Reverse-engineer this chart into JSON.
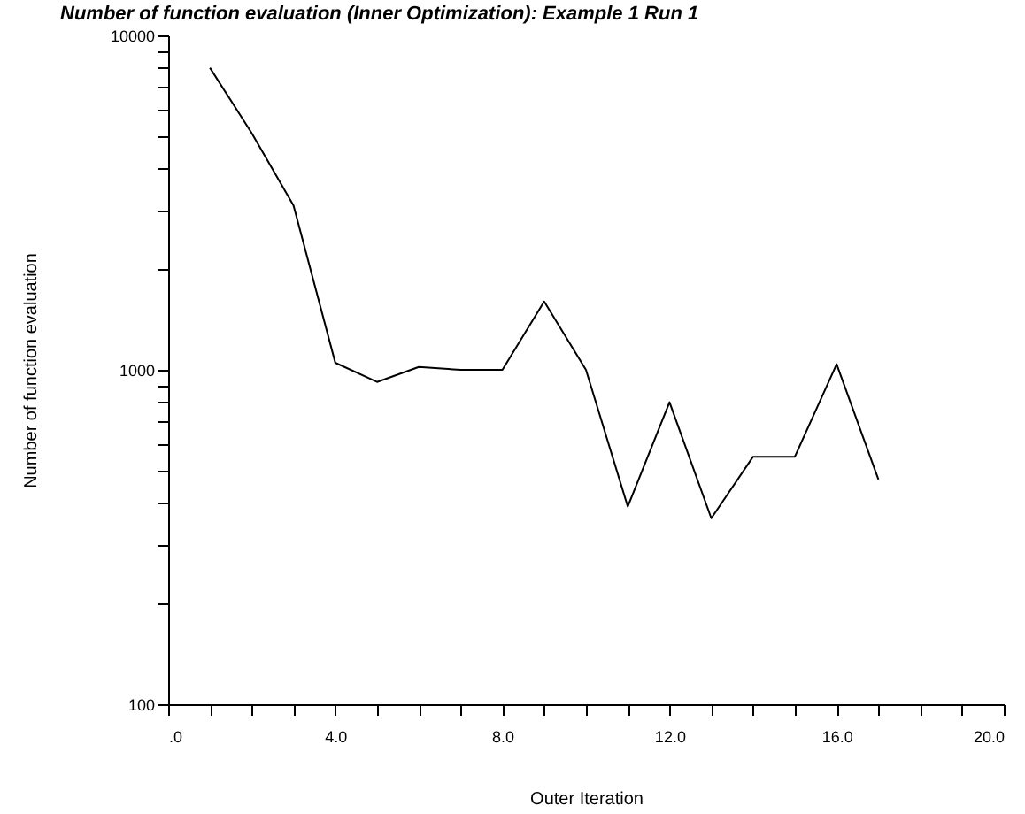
{
  "chart_data": {
    "type": "line",
    "title": "Number of function evaluation (Inner Optimization): Example 1 Run 1",
    "xlabel": "Outer Iteration",
    "ylabel": "Number of function evaluation",
    "x": [
      1,
      2,
      3,
      4,
      5,
      6,
      7,
      8,
      9,
      10,
      11,
      12,
      13,
      14,
      15,
      16,
      17
    ],
    "series": [
      {
        "color": "#000000",
        "values": [
          8000,
          5100,
          3100,
          1050,
          920,
          1020,
          1000,
          1000,
          1600,
          1000,
          390,
          800,
          360,
          550,
          550,
          1040,
          470
        ]
      }
    ],
    "log": "y",
    "xlim": [
      0,
      20
    ],
    "ylim": [
      100,
      10000
    ],
    "xticks": [
      {
        "value": 0,
        "label": ".0"
      },
      {
        "value": 1,
        "label": null
      },
      {
        "value": 2,
        "label": null
      },
      {
        "value": 3,
        "label": null
      },
      {
        "value": 4,
        "label": "4.0"
      },
      {
        "value": 5,
        "label": null
      },
      {
        "value": 6,
        "label": null
      },
      {
        "value": 7,
        "label": null
      },
      {
        "value": 8,
        "label": "8.0"
      },
      {
        "value": 9,
        "label": null
      },
      {
        "value": 10,
        "label": null
      },
      {
        "value": 11,
        "label": null
      },
      {
        "value": 12,
        "label": "12.0"
      },
      {
        "value": 13,
        "label": null
      },
      {
        "value": 14,
        "label": null
      },
      {
        "value": 15,
        "label": null
      },
      {
        "value": 16,
        "label": "16.0"
      },
      {
        "value": 17,
        "label": null
      },
      {
        "value": 18,
        "label": null
      },
      {
        "value": 19,
        "label": null
      },
      {
        "value": 20,
        "label": "20.0"
      }
    ],
    "yticks": [
      100,
      {
        "value": 200,
        "label": null
      },
      {
        "value": 300,
        "label": null
      },
      {
        "value": 400,
        "label": null
      },
      {
        "value": 500,
        "label": null
      },
      {
        "value": 600,
        "label": null
      },
      {
        "value": 700,
        "label": null
      },
      {
        "value": 800,
        "label": null
      },
      {
        "value": 900,
        "label": null
      },
      1000,
      {
        "value": 2000,
        "label": null
      },
      {
        "value": 3000,
        "label": null
      },
      {
        "value": 4000,
        "label": null
      },
      {
        "value": 5000,
        "label": null
      },
      {
        "value": 6000,
        "label": null
      },
      {
        "value": 7000,
        "label": null
      },
      {
        "value": 8000,
        "label": null
      },
      {
        "value": 9000,
        "label": null
      },
      10000
    ],
    "grid": false,
    "legend": false,
    "marker": "none",
    "line_style": "solid"
  }
}
